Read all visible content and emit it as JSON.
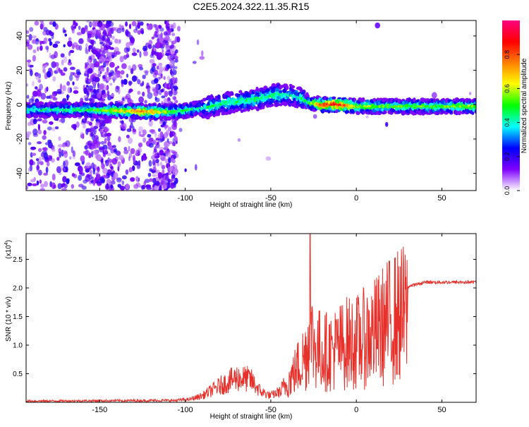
{
  "page": {
    "title": "C2E5.2024.322.11.35.R15"
  },
  "chart_data": [
    {
      "type": "heatmap",
      "title": "C2E5.2024.322.11.35.R15",
      "xlabel": "Height of straight line (km)",
      "ylabel": "Frequency (Hz)",
      "xlim": [
        -193,
        70
      ],
      "ylim": [
        -50,
        49
      ],
      "x_ticks": [
        -150,
        -100,
        -50,
        0,
        50
      ],
      "x_tick_labels": [
        "-150",
        "-100",
        "-50",
        "0",
        "50"
      ],
      "y_ticks": [
        -40,
        -20,
        0,
        20,
        40
      ],
      "y_tick_labels": [
        "-40",
        "-20",
        "0",
        "20",
        "40"
      ],
      "colorbar": {
        "label": "Normalized spectral amplitude",
        "range": [
          0,
          1
        ],
        "ticks": [
          0,
          0.2,
          0.4,
          0.6,
          0.8
        ],
        "tick_labels": [
          "0.0",
          "0.2",
          "0.4",
          "0.6",
          "0.8"
        ],
        "colormap": [
          "#ffffff",
          "#7f00ff",
          "#0000ff",
          "#00ffff",
          "#00ff00",
          "#ffff00",
          "#ff8000",
          "#ff0000",
          "#ff0080"
        ]
      },
      "ridge": [
        {
          "x": -193,
          "y": -3,
          "amp": 0.4
        },
        {
          "x": -160,
          "y": -3,
          "amp": 0.45
        },
        {
          "x": -125,
          "y": -4,
          "amp": 0.75
        },
        {
          "x": -105,
          "y": -4,
          "amp": 0.5
        },
        {
          "x": -90,
          "y": -2,
          "amp": 0.4
        },
        {
          "x": -75,
          "y": 1,
          "amp": 0.45
        },
        {
          "x": -60,
          "y": 3,
          "amp": 0.45
        },
        {
          "x": -45,
          "y": 6,
          "amp": 0.45
        },
        {
          "x": -35,
          "y": 5,
          "amp": 0.4
        },
        {
          "x": -27,
          "y": 1,
          "amp": 0.5
        },
        {
          "x": -20,
          "y": 0,
          "amp": 0.8
        },
        {
          "x": -10,
          "y": 0,
          "amp": 0.9
        },
        {
          "x": 0,
          "y": -1,
          "amp": 0.6
        },
        {
          "x": 20,
          "y": -1,
          "amp": 0.5
        },
        {
          "x": 70,
          "y": -1,
          "amp": 0.55
        }
      ],
      "legend": "none",
      "grid": false
    },
    {
      "type": "line",
      "xlabel": "Height of straight line (km)",
      "ylabel": "SNR (10 * v/v)",
      "y_multiplier": "(x10",
      "y_multiplier_exp": "4",
      "y_multiplier_close": ")",
      "xlim": [
        -193,
        70
      ],
      "ylim": [
        0,
        2.95
      ],
      "x_ticks": [
        -150,
        -100,
        -50,
        0,
        50
      ],
      "x_tick_labels": [
        "-150",
        "-100",
        "-50",
        "0",
        "50"
      ],
      "y_ticks": [
        0.5,
        1.0,
        1.5,
        2.0,
        2.5
      ],
      "y_tick_labels": [
        "0.5",
        "1.0",
        "1.5",
        "2.0",
        "2.5"
      ],
      "color": "#e8302a",
      "envelope": [
        {
          "x": -193,
          "y": 0.02
        },
        {
          "x": -105,
          "y": 0.03
        },
        {
          "x": -98,
          "y": 0.05
        },
        {
          "x": -90,
          "y": 0.12
        },
        {
          "x": -80,
          "y": 0.3
        },
        {
          "x": -70,
          "y": 0.45
        },
        {
          "x": -62,
          "y": 0.42
        },
        {
          "x": -56,
          "y": 0.2
        },
        {
          "x": -50,
          "y": 0.12
        },
        {
          "x": -45,
          "y": 0.2
        },
        {
          "x": -40,
          "y": 0.45
        },
        {
          "x": -35,
          "y": 0.75
        },
        {
          "x": -30,
          "y": 1.05
        },
        {
          "x": -27,
          "y": 1.5
        },
        {
          "x": -24,
          "y": 1.25
        },
        {
          "x": -20,
          "y": 1.15
        },
        {
          "x": -15,
          "y": 1.15
        },
        {
          "x": -10,
          "y": 1.25
        },
        {
          "x": -5,
          "y": 1.35
        },
        {
          "x": 0,
          "y": 1.35
        },
        {
          "x": 5,
          "y": 1.45
        },
        {
          "x": 10,
          "y": 1.55
        },
        {
          "x": 15,
          "y": 1.7
        },
        {
          "x": 20,
          "y": 1.85
        },
        {
          "x": 25,
          "y": 1.95
        },
        {
          "x": 30,
          "y": 2.02
        },
        {
          "x": 35,
          "y": 2.06
        },
        {
          "x": 40,
          "y": 2.1
        },
        {
          "x": 70,
          "y": 2.1
        }
      ],
      "peak": {
        "x": -27,
        "y": 2.95
      },
      "legend": "none",
      "grid": false
    }
  ]
}
